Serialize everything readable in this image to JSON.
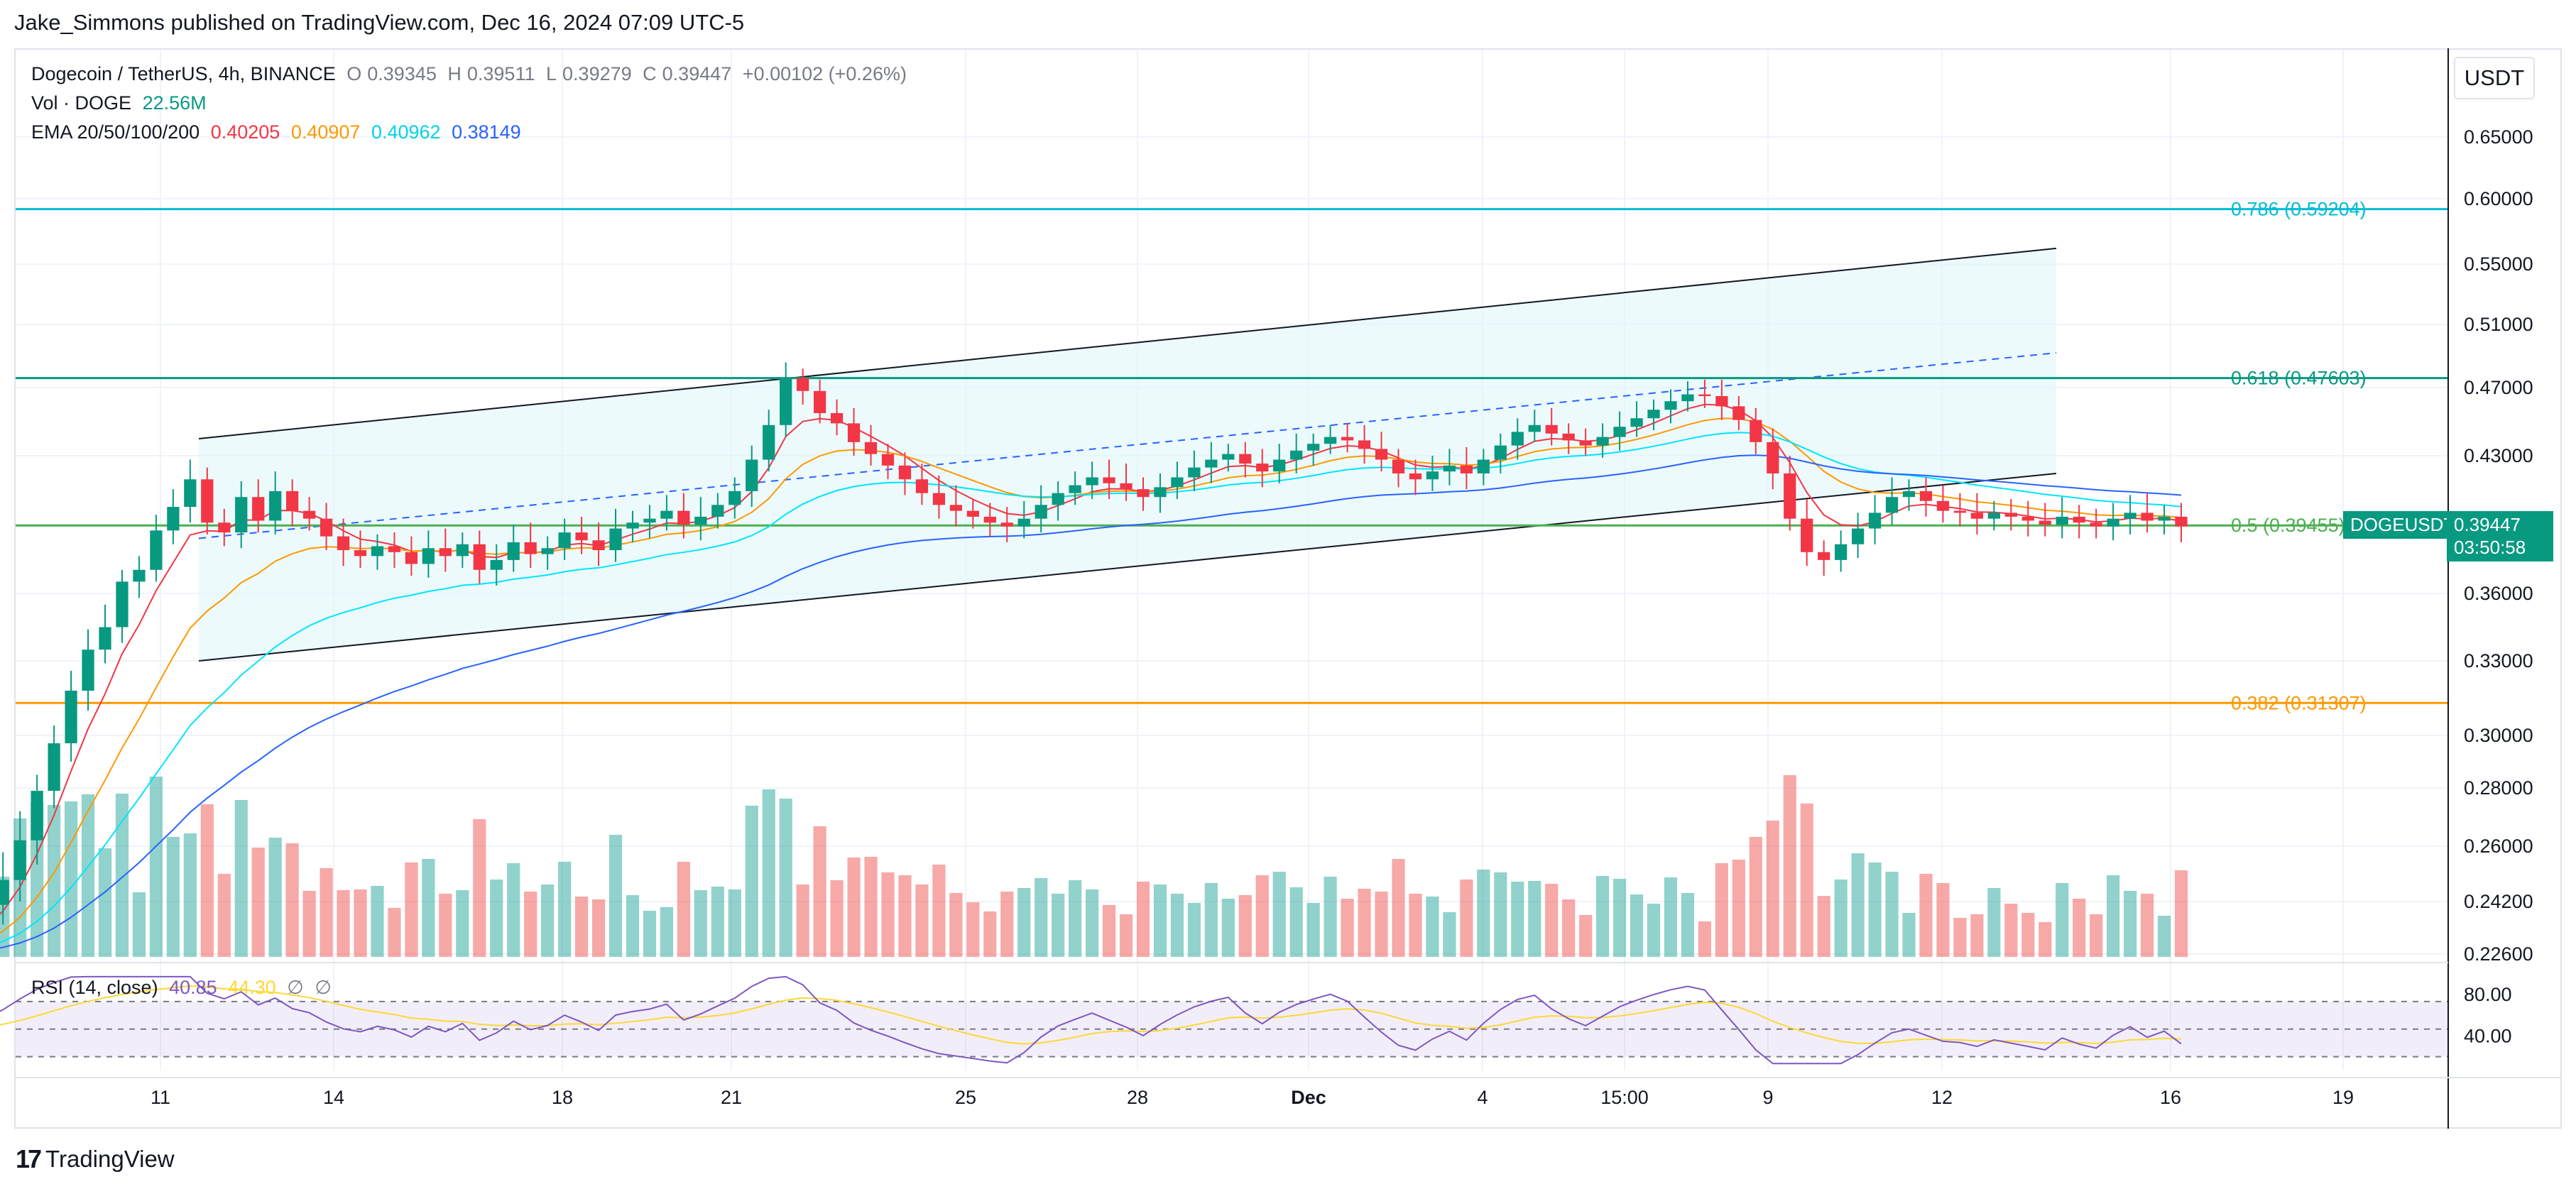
{
  "header": {
    "publisher_line": "Jake_Simmons published on TradingView.com, Dec 16, 2024 07:09 UTC-5"
  },
  "legend": {
    "symbol": "Dogecoin / TetherUS, 4h, BINANCE",
    "open_label": "O",
    "open": "0.39345",
    "high_label": "H",
    "high": "0.39511",
    "low_label": "L",
    "low": "0.39279",
    "close_label": "C",
    "close": "0.39447",
    "change": "+0.00102 (+0.26%)",
    "vol_label": "Vol · DOGE",
    "vol_value": "22.56M",
    "ema_label": "EMA 20/50/100/200",
    "ema_values": [
      "0.40205",
      "0.40907",
      "0.40962",
      "0.38149"
    ],
    "ema_colors": [
      "#f23645",
      "#ff9800",
      "#00e5ff",
      "#2962ff"
    ]
  },
  "rsi": {
    "label": "RSI (14, close)",
    "value": "40.85",
    "ma_value": "44.30",
    "extra1": "∅",
    "extra2": "∅",
    "axis_ticks": [
      "80.00",
      "40.00"
    ]
  },
  "axis": {
    "currency": "USDT",
    "price_ticks": [
      "0.65000",
      "0.60000",
      "0.55000",
      "0.51000",
      "0.47000",
      "0.43000",
      "0.36000",
      "0.33000",
      "0.30000",
      "0.28000",
      "0.26000",
      "0.24200",
      "0.22600"
    ],
    "time_ticks": [
      "11",
      "14",
      "18",
      "21",
      "25",
      "28",
      "Dec",
      "4",
      "15:00",
      "9",
      "12",
      "16",
      "19"
    ]
  },
  "price_tag": {
    "symbol": "DOGEUSDT",
    "price": "0.39447",
    "countdown": "03:50:58"
  },
  "fib_levels": [
    {
      "label": "0.786 (0.59204)",
      "value": 0.59204,
      "color": "#00bcd4"
    },
    {
      "label": "0.618 (0.47603)",
      "value": 0.47603,
      "color": "#089981"
    },
    {
      "label": "0.5 (0.39455)",
      "value": 0.39455,
      "color": "#4caf50"
    },
    {
      "label": "0.382 (0.31307)",
      "value": 0.31307,
      "color": "#ff9800"
    }
  ],
  "chart_data": {
    "type": "candlestick",
    "title": "Dogecoin / TetherUS, 4h, BINANCE",
    "ylim": [
      0.226,
      0.67
    ],
    "x_ticks": [
      "11",
      "14",
      "18",
      "21",
      "25",
      "28",
      "Dec",
      "4",
      "15:00",
      "9",
      "12",
      "16",
      "19"
    ],
    "channel": {
      "upper": [
        0.44,
        0.562
      ],
      "lower": [
        0.33,
        0.421
      ],
      "mid_dashed": [
        0.388,
        0.492
      ],
      "color": "#e0f7fa"
    },
    "closes": [
      0.345,
      0.366,
      0.372,
      0.392,
      0.404,
      0.418,
      0.396,
      0.391,
      0.409,
      0.397,
      0.412,
      0.402,
      0.398,
      0.389,
      0.382,
      0.379,
      0.384,
      0.381,
      0.375,
      0.383,
      0.379,
      0.385,
      0.372,
      0.377,
      0.386,
      0.38,
      0.383,
      0.391,
      0.387,
      0.382,
      0.393,
      0.396,
      0.398,
      0.402,
      0.395,
      0.399,
      0.405,
      0.412,
      0.428,
      0.448,
      0.476,
      0.468,
      0.455,
      0.449,
      0.438,
      0.431,
      0.425,
      0.418,
      0.411,
      0.405,
      0.402,
      0.399,
      0.396,
      0.394,
      0.398,
      0.405,
      0.411,
      0.415,
      0.419,
      0.416,
      0.413,
      0.409,
      0.414,
      0.419,
      0.424,
      0.428,
      0.431,
      0.426,
      0.422,
      0.428,
      0.433,
      0.437,
      0.441,
      0.439,
      0.434,
      0.428,
      0.421,
      0.418,
      0.422,
      0.425,
      0.421,
      0.428,
      0.436,
      0.444,
      0.448,
      0.443,
      0.439,
      0.436,
      0.441,
      0.447,
      0.452,
      0.457,
      0.462,
      0.466,
      0.465,
      0.459,
      0.451,
      0.438,
      0.421,
      0.398,
      0.381,
      0.377,
      0.385,
      0.393,
      0.401,
      0.409,
      0.412,
      0.407,
      0.402,
      0.401,
      0.398,
      0.401,
      0.399,
      0.397,
      0.395,
      0.399,
      0.396,
      0.394,
      0.398,
      0.401,
      0.397,
      0.399,
      0.394
    ],
    "volume_scale": "relative"
  }
}
